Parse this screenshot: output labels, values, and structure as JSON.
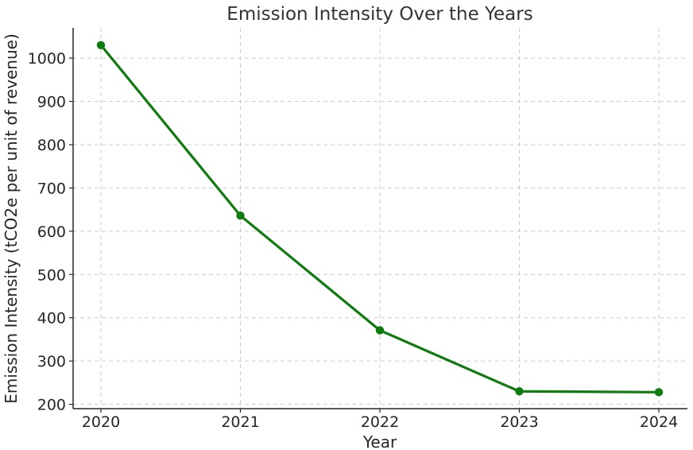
{
  "chart_data": {
    "type": "line",
    "title": "Emission Intensity Over the Years",
    "xlabel": "Year",
    "ylabel": "Emission Intensity (tCO2e per unit of revenue)",
    "categories": [
      "2020",
      "2021",
      "2022",
      "2023",
      "2024"
    ],
    "series": [
      {
        "values": [
          1030,
          636,
          371,
          230,
          228
        ]
      }
    ],
    "yticks": [
      200,
      300,
      400,
      500,
      600,
      700,
      800,
      900,
      1000
    ],
    "ylim": [
      190,
      1070
    ],
    "grid": true,
    "line_color": "#107c10",
    "marker": "circle"
  }
}
